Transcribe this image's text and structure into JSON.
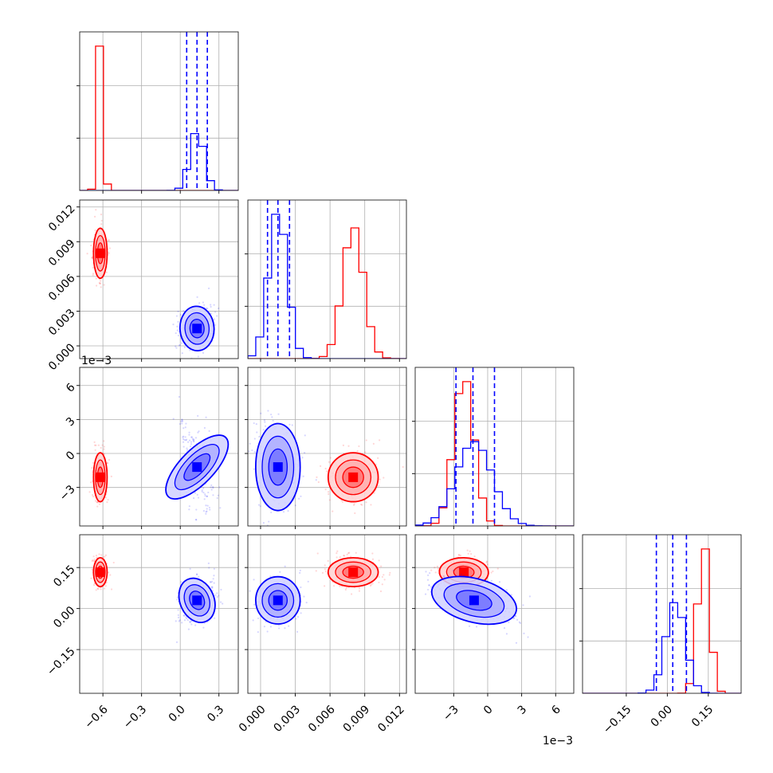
{
  "chart_data": {
    "type": "scatter",
    "subtype": "corner-plot",
    "parameter_count": 4,
    "series": [
      {
        "color": "#ff0000",
        "mean": [
          -0.62,
          0.008,
          -0.0021,
          0.133
        ],
        "std": [
          0.022,
          0.0009,
          0.0009,
          0.022
        ]
      },
      {
        "color": "#0000ff",
        "mean": [
          0.13,
          0.0015,
          -0.0012,
          0.03
        ],
        "std": [
          0.055,
          0.0008,
          0.0016,
          0.036
        ]
      }
    ],
    "quantile_lines": {
      "color": "#0000ff",
      "params": [
        [
          0.05,
          0.13,
          0.21
        ],
        [
          0.0006,
          0.0015,
          0.0025
        ],
        [
          -0.0028,
          -0.0013,
          0.0006
        ],
        [
          -0.04,
          0.02,
          0.07
        ]
      ]
    },
    "axes": [
      {
        "range": [
          -0.78,
          0.45
        ],
        "ticks": [
          -0.6,
          -0.3,
          0.0,
          0.3
        ],
        "tick_labels": [
          "−0.6",
          "−0.3",
          "0.0",
          "0.3"
        ]
      },
      {
        "range": [
          -0.0011,
          0.0126
        ],
        "ticks": [
          0.0,
          0.003,
          0.006,
          0.009,
          0.012
        ],
        "tick_labels": [
          "0.000",
          "0.003",
          "0.006",
          "0.009",
          "0.012"
        ]
      },
      {
        "range": [
          -0.0064,
          0.0076
        ],
        "ticks": [
          -0.003,
          0.0,
          0.003,
          0.006
        ],
        "tick_labels": [
          "−3",
          "0",
          "3",
          "6"
        ]
      },
      {
        "range": [
          -0.31,
          0.27
        ],
        "ticks": [
          -0.15,
          0.0,
          0.15
        ],
        "tick_labels": [
          "−0.15",
          "0.00",
          "0.15"
        ]
      }
    ],
    "offset_labels": {
      "param2_y": "1e−3",
      "param3_x": "1e−3"
    },
    "grid": true,
    "contour_levels": 3
  }
}
